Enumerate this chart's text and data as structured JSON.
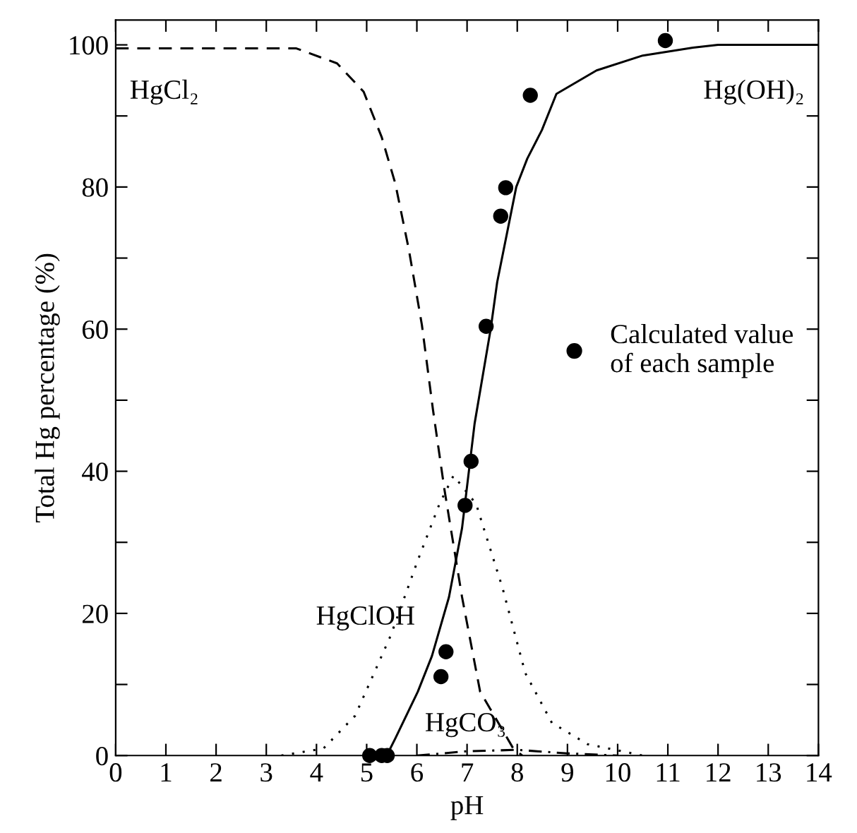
{
  "chart_data": {
    "type": "line",
    "xlabel": "pH",
    "ylabel": "Total Hg percentage (%)",
    "xlim": [
      0,
      14
    ],
    "xticks": [
      0,
      1,
      2,
      3,
      4,
      5,
      6,
      7,
      8,
      9,
      10,
      11,
      12,
      13,
      14
    ],
    "ylim": [
      0,
      103.5
    ],
    "yticks": [
      0,
      {
        "value": 10,
        "label": null
      },
      20,
      {
        "value": 30,
        "label": null
      },
      40,
      {
        "value": 50,
        "label": null
      },
      60,
      {
        "value": 70,
        "label": null
      },
      80,
      {
        "value": 90,
        "label": null
      },
      100
    ],
    "legend": "right",
    "grid": false,
    "series": [
      {
        "name": "HgCl₂",
        "line_style": "dashed",
        "color": "#000000",
        "x": [
          0,
          3.6,
          4.41,
          4.94,
          5.3,
          5.57,
          5.84,
          6.1,
          6.32,
          6.55,
          6.9,
          7.26,
          7.92,
          8.1
        ],
        "values": [
          99.5,
          99.5,
          97.4,
          93.4,
          87,
          80.5,
          71.2,
          60.6,
          48.7,
          37.4,
          22.3,
          9,
          1,
          0
        ]
      },
      {
        "name": "Hg(OH)₂",
        "line_style": "solid",
        "color": "#000000",
        "x": [
          5.4,
          5.57,
          6.02,
          6.3,
          6.64,
          6.9,
          7.15,
          7.47,
          7.6,
          7.98,
          8.2,
          8.49,
          8.78,
          9.58,
          10.5,
          11.5,
          12,
          14
        ],
        "values": [
          0,
          2.4,
          9,
          14,
          22.3,
          32,
          46.7,
          60,
          66.6,
          80,
          84,
          88,
          93.1,
          96.4,
          98.5,
          99.6,
          100,
          100
        ]
      },
      {
        "name": "HgClOH",
        "line_style": "dotted",
        "color": "#000000",
        "x": [
          3.3,
          4.14,
          4.77,
          5.48,
          6.02,
          6.45,
          6.73,
          7.18,
          7.71,
          8.16,
          8.69,
          9.4,
          10.5
        ],
        "values": [
          0,
          1,
          5.6,
          16.9,
          27.5,
          35.4,
          39.4,
          35.4,
          23.5,
          11.6,
          4.6,
          1.6,
          0
        ]
      },
      {
        "name": "HgCO₃",
        "line_style": "dashdot",
        "color": "#000000",
        "x": [
          6,
          7,
          8,
          9,
          10
        ],
        "values": [
          0,
          0.6,
          0.8,
          0.3,
          0
        ]
      },
      {
        "type": "scatter",
        "marker": "circle",
        "color": "#000000",
        "name": "Calculated value\nof each sample",
        "x": [
          5.06,
          5.3,
          5.41,
          6.48,
          6.58,
          6.96,
          7.08,
          7.38,
          7.67,
          7.77,
          8.26,
          10.95
        ],
        "values": [
          0,
          0,
          0,
          11.1,
          14.6,
          35.2,
          41.4,
          60.4,
          75.9,
          79.9,
          92.9,
          100.6
        ]
      }
    ]
  }
}
